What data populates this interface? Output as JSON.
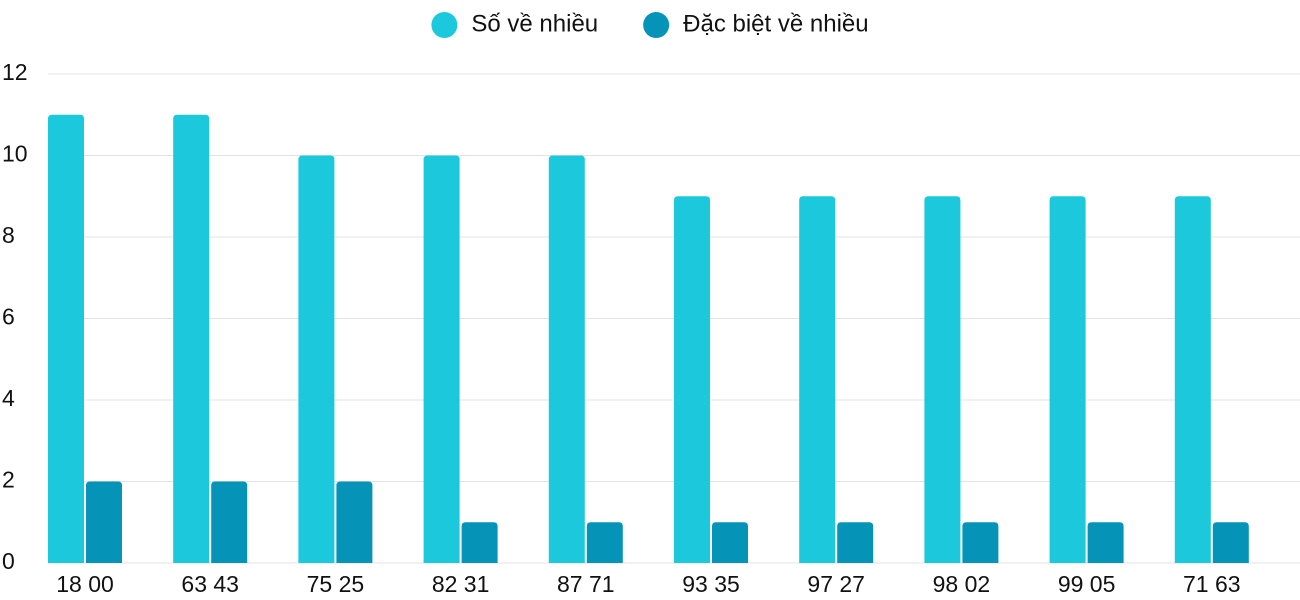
{
  "chart_data": {
    "type": "bar",
    "categories": [
      "18 00",
      "63 43",
      "75 25",
      "82 31",
      "87 71",
      "93 35",
      "97 27",
      "98 02",
      "99 05",
      "71 63"
    ],
    "series": [
      {
        "name": "Số về nhiều",
        "color": "#1bc8dc",
        "values": [
          11,
          11,
          10,
          10,
          10,
          9,
          9,
          9,
          9,
          9
        ]
      },
      {
        "name": "Đặc biệt về nhiều",
        "color": "#0693b8",
        "values": [
          2,
          2,
          2,
          1,
          1,
          1,
          1,
          1,
          1,
          1
        ]
      }
    ],
    "ylim": [
      0,
      12
    ],
    "yticks": [
      0,
      2,
      4,
      6,
      8,
      10,
      12
    ],
    "grid": true,
    "legend": "top"
  }
}
